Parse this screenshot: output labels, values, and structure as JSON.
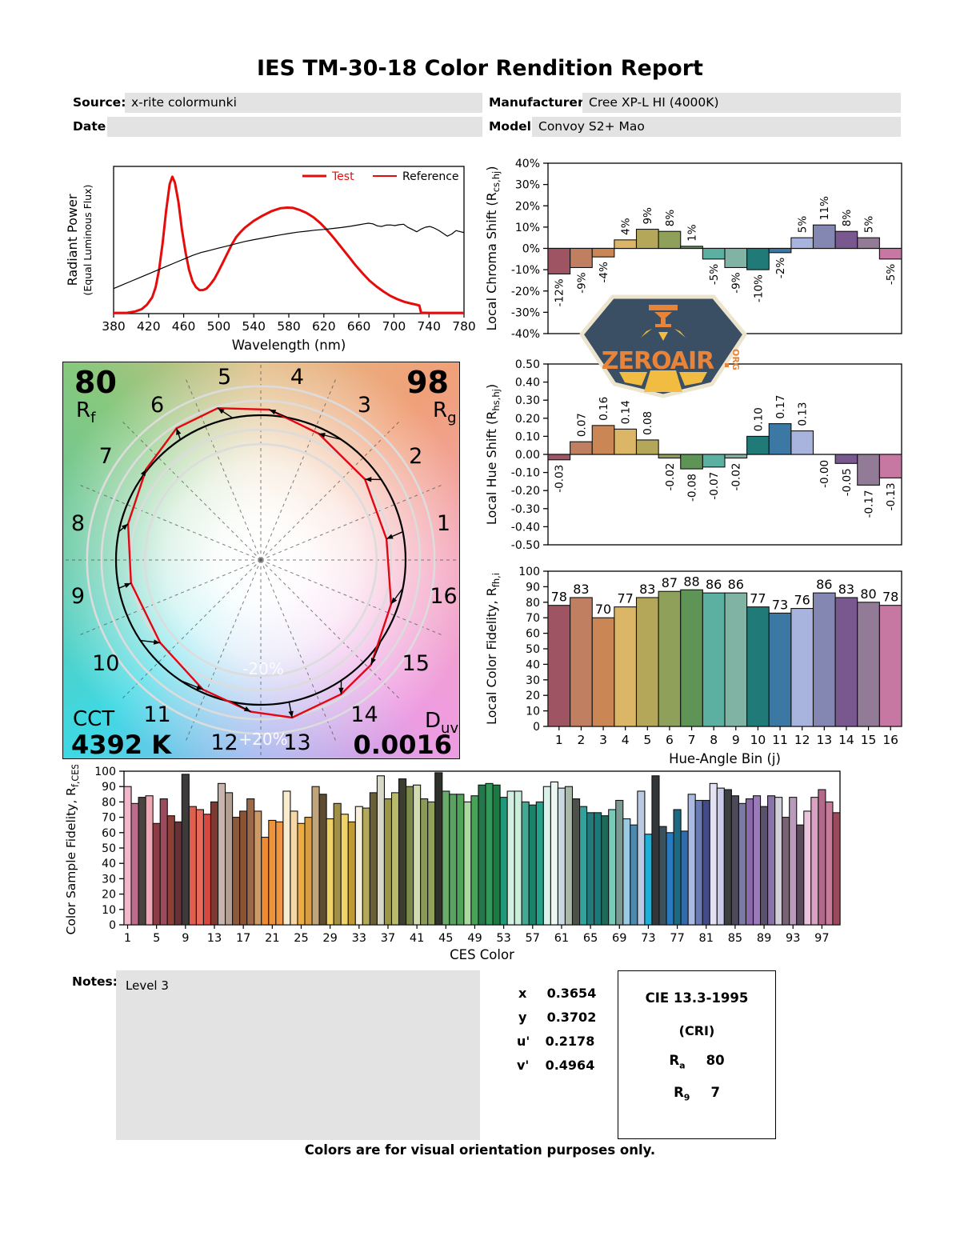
{
  "report": {
    "title": "IES TM-30-18 Color Rendition Report",
    "source_label": "Source:",
    "source_value": "x-rite colormunki",
    "manufacturer_label": "Manufacturer:",
    "manufacturer_value": "Cree XP-L HI (4000K)",
    "date_label": "Date:",
    "date_value": "",
    "model_label": "Model:",
    "model_value": "Convoy S2+ Mao"
  },
  "palette": {
    "hue_bins": [
      "#9e5462",
      "#c17f62",
      "#ca8654",
      "#dbb667",
      "#b5a75a",
      "#8fa05a",
      "#5f9457",
      "#5cb0a2",
      "#80b3a4",
      "#1f7a78",
      "#3b79a4",
      "#a9b4de",
      "#8387b1",
      "#78588f",
      "#917b97",
      "#c778a2"
    ],
    "test_red": "#e60c0c"
  },
  "chart_data": [
    {
      "id": "spd",
      "type": "line",
      "xlabel": "Wavelength (nm)",
      "ylabel": "Radiant Power",
      "ylabel2": "(Equal Luminous Flux)",
      "xlim": [
        380,
        780
      ],
      "ylim": [
        0,
        100
      ],
      "xticks": [
        380,
        420,
        460,
        500,
        540,
        580,
        620,
        660,
        700,
        740,
        780
      ],
      "legend": [
        {
          "name": "Test",
          "swatch_color": "#e60c0c",
          "text_color": "#e60c0c"
        },
        {
          "name": "Reference",
          "swatch_color": "#e60c0c",
          "text_color": "#000000"
        }
      ],
      "series": [
        {
          "name": "Test",
          "color": "#e60c0c",
          "width": 3,
          "points": [
            [
              380,
              0.5
            ],
            [
              395,
              0.5
            ],
            [
              405,
              1.5
            ],
            [
              412,
              3
            ],
            [
              418,
              6
            ],
            [
              424,
              11
            ],
            [
              428,
              18
            ],
            [
              432,
              30
            ],
            [
              436,
              48
            ],
            [
              440,
              70
            ],
            [
              444,
              88
            ],
            [
              447,
              93
            ],
            [
              450,
              89
            ],
            [
              454,
              76
            ],
            [
              458,
              57
            ],
            [
              462,
              42
            ],
            [
              466,
              30
            ],
            [
              470,
              22
            ],
            [
              474,
              18
            ],
            [
              478,
              16
            ],
            [
              482,
              16
            ],
            [
              486,
              17
            ],
            [
              490,
              19.5
            ],
            [
              495,
              23.5
            ],
            [
              500,
              29
            ],
            [
              505,
              35
            ],
            [
              510,
              41
            ],
            [
              515,
              47
            ],
            [
              520,
              52
            ],
            [
              525,
              55.5
            ],
            [
              530,
              58.5
            ],
            [
              540,
              63
            ],
            [
              550,
              66.5
            ],
            [
              560,
              69.5
            ],
            [
              570,
              71.5
            ],
            [
              578,
              72
            ],
            [
              585,
              71.8
            ],
            [
              592,
              70.5
            ],
            [
              600,
              68.5
            ],
            [
              608,
              65.5
            ],
            [
              616,
              61.5
            ],
            [
              624,
              56.5
            ],
            [
              632,
              51
            ],
            [
              640,
              45
            ],
            [
              648,
              39
            ],
            [
              656,
              33
            ],
            [
              664,
              27.5
            ],
            [
              672,
              22.5
            ],
            [
              680,
              18.5
            ],
            [
              688,
              15
            ],
            [
              696,
              12
            ],
            [
              704,
              9.8
            ],
            [
              712,
              8
            ],
            [
              720,
              6.8
            ],
            [
              726,
              6
            ],
            [
              729,
              5.5
            ],
            [
              731,
              0.6
            ],
            [
              740,
              0.5
            ],
            [
              780,
              0.5
            ]
          ]
        },
        {
          "name": "Reference",
          "color": "#000000",
          "width": 1.2,
          "points": [
            [
              380,
              17
            ],
            [
              390,
              19.5
            ],
            [
              400,
              22
            ],
            [
              410,
              24.5
            ],
            [
              420,
              27
            ],
            [
              430,
              29.5
            ],
            [
              440,
              32
            ],
            [
              450,
              34.5
            ],
            [
              460,
              37
            ],
            [
              470,
              39.5
            ],
            [
              480,
              41.5
            ],
            [
              490,
              43
            ],
            [
              500,
              44.5
            ],
            [
              510,
              46
            ],
            [
              520,
              47.5
            ],
            [
              530,
              49
            ],
            [
              540,
              50.2
            ],
            [
              550,
              51.3
            ],
            [
              560,
              52.4
            ],
            [
              570,
              53.4
            ],
            [
              580,
              54.4
            ],
            [
              590,
              55.3
            ],
            [
              600,
              56
            ],
            [
              610,
              56.7
            ],
            [
              620,
              57.2
            ],
            [
              630,
              57.8
            ],
            [
              640,
              58.5
            ],
            [
              650,
              59.3
            ],
            [
              660,
              60.3
            ],
            [
              666,
              61
            ],
            [
              671,
              61.4
            ],
            [
              676,
              61
            ],
            [
              681,
              59.6
            ],
            [
              686,
              59.2
            ],
            [
              691,
              60.1
            ],
            [
              696,
              60.2
            ],
            [
              701,
              59.8
            ],
            [
              706,
              60.4
            ],
            [
              711,
              60.7
            ],
            [
              716,
              58.6
            ],
            [
              721,
              57.2
            ],
            [
              726,
              55.6
            ],
            [
              731,
              57.4
            ],
            [
              736,
              58.7
            ],
            [
              741,
              59.2
            ],
            [
              746,
              58.1
            ],
            [
              751,
              56.6
            ],
            [
              756,
              54.6
            ],
            [
              761,
              52.6
            ],
            [
              766,
              54.1
            ],
            [
              771,
              56.4
            ],
            [
              776,
              55.6
            ],
            [
              780,
              55.1
            ]
          ]
        }
      ]
    },
    {
      "id": "chroma",
      "type": "bar",
      "ylabel": {
        "pre": "Local Chroma Shift (R",
        "sub": "cs,hj",
        "post": ")",
        "fs": 16
      },
      "ylim": [
        -40,
        40
      ],
      "yticks": [
        "40%",
        "30%",
        "20%",
        "10%",
        "0%",
        "-10%",
        "-20%",
        "-30%",
        "-40%"
      ],
      "categories": [
        1,
        2,
        3,
        4,
        5,
        6,
        7,
        8,
        9,
        10,
        11,
        12,
        13,
        14,
        15,
        16
      ],
      "values": [
        -12,
        -9,
        -4,
        4,
        9,
        8,
        1,
        -5,
        -9,
        -10,
        -2,
        5,
        11,
        8,
        5,
        -5
      ],
      "bar_labels": [
        "-12%",
        "-9%",
        "-4%",
        "4%",
        "9%",
        "8%",
        "1%",
        "-5%",
        "-9%",
        "-10%",
        "-2%",
        "5%",
        "11%",
        "8%",
        "5%",
        "-5%"
      ],
      "label_style": "rotated"
    },
    {
      "id": "hue",
      "type": "bar",
      "ylabel": {
        "pre": "Local Hue Shift (R",
        "sub": "hs,hj",
        "post": ")",
        "fs": 16
      },
      "ylim": [
        -0.5,
        0.5
      ],
      "yticks": [
        "0.50",
        "0.40",
        "0.30",
        "0.20",
        "0.10",
        "0.00",
        "-0.10",
        "-0.20",
        "-0.30",
        "-0.40",
        "-0.50"
      ],
      "categories": [
        1,
        2,
        3,
        4,
        5,
        6,
        7,
        8,
        9,
        10,
        11,
        12,
        13,
        14,
        15,
        16
      ],
      "values": [
        -0.03,
        0.07,
        0.16,
        0.14,
        0.08,
        -0.02,
        -0.08,
        -0.07,
        -0.02,
        0.1,
        0.17,
        0.13,
        -0.004,
        -0.05,
        -0.17,
        -0.13
      ],
      "bar_labels": [
        "-0.03",
        "0.07",
        "0.16",
        "0.14",
        "0.08",
        "-0.02",
        "-0.08",
        "-0.07",
        "-0.02",
        "0.10",
        "0.17",
        "0.13",
        "-0.00",
        "-0.05",
        "-0.17",
        "-0.13"
      ],
      "label_style": "rotated"
    },
    {
      "id": "fidelity",
      "type": "bar",
      "ylabel": {
        "pre": "Local Color Fidelity, R",
        "sub": "fh,i",
        "post": "",
        "fs": 16
      },
      "xlabel": "Hue-Angle Bin (j)",
      "ylim": [
        0,
        100
      ],
      "yticks": [
        "100",
        "90",
        "80",
        "70",
        "60",
        "50",
        "40",
        "30",
        "20",
        "10",
        "0"
      ],
      "categories": [
        1,
        2,
        3,
        4,
        5,
        6,
        7,
        8,
        9,
        10,
        11,
        12,
        13,
        14,
        15,
        16
      ],
      "xticks": [
        "1",
        "2",
        "3",
        "4",
        "5",
        "6",
        "7",
        "8",
        "9",
        "10",
        "11",
        "12",
        "13",
        "14",
        "15",
        "16"
      ],
      "values": [
        78,
        83,
        70,
        77,
        83,
        87,
        88,
        86,
        86,
        77,
        73,
        76,
        86,
        83,
        80,
        78
      ],
      "bar_labels": [
        "78",
        "83",
        "70",
        "77",
        "83",
        "87",
        "88",
        "86",
        "86",
        "77",
        "73",
        "76",
        "86",
        "83",
        "80",
        "78"
      ],
      "label_style": "top"
    },
    {
      "id": "ces",
      "type": "bar",
      "ylabel": {
        "pre": "Color Sample Fidelity, R",
        "sub": "f,CESi",
        "post": "",
        "fs": 15.5
      },
      "xlabel": "CES Color",
      "ylim": [
        0,
        100
      ],
      "yticks": [
        "100",
        "90",
        "80",
        "70",
        "60",
        "50",
        "40",
        "30",
        "20",
        "10",
        "0"
      ],
      "xticks": [
        "1",
        "5",
        "9",
        "13",
        "17",
        "21",
        "25",
        "29",
        "33",
        "37",
        "41",
        "45",
        "49",
        "53",
        "57",
        "61",
        "65",
        "69",
        "73",
        "77",
        "81",
        "85",
        "89",
        "93",
        "97"
      ],
      "xtick_every": 4,
      "values": [
        90,
        79,
        83,
        84,
        66,
        82,
        71,
        67,
        98,
        77,
        75,
        72,
        80,
        92,
        86,
        70,
        74,
        82,
        74,
        57,
        68,
        67,
        87,
        74,
        66,
        70,
        90,
        85,
        69,
        79,
        72,
        67,
        77,
        76,
        86,
        97,
        82,
        86,
        95,
        90,
        91,
        82,
        80,
        99,
        87,
        85,
        85,
        80,
        84,
        91,
        92,
        91,
        83,
        87,
        87,
        80,
        78,
        80,
        90,
        93,
        89,
        90,
        82,
        77,
        73,
        73,
        71,
        75,
        81,
        69,
        65,
        87,
        59,
        97,
        64,
        60,
        75,
        61,
        85,
        81,
        81,
        92,
        89,
        88,
        84,
        79,
        82,
        84,
        77,
        84,
        83,
        70,
        83,
        65,
        74,
        83,
        88,
        80,
        73
      ],
      "colors": [
        "#f2b8cc",
        "#c06a8c",
        "#4a443e",
        "#f0a8b4",
        "#8c3c44",
        "#9c4a5e",
        "#8c4036",
        "#663238",
        "#3c3a3a",
        "#e05e4e",
        "#e86a58",
        "#d84840",
        "#7c3a32",
        "#c6b6ae",
        "#b4a092",
        "#8c5a3a",
        "#8c5232",
        "#9c6a4a",
        "#cc9a66",
        "#ec8c34",
        "#f0923a",
        "#ee9644",
        "#f8eccc",
        "#f6d8a8",
        "#eeac40",
        "#d89c42",
        "#c2a47c",
        "#5c4c32",
        "#f0d262",
        "#a29049",
        "#f0d46a",
        "#c29a34",
        "#f8f0da",
        "#b2aa5a",
        "#6a6038",
        "#d8d8c8",
        "#9c9648",
        "#baba6c",
        "#3c3e32",
        "#7c8a4a",
        "#d2dab2",
        "#8c9a58",
        "#92a25a",
        "#2e302a",
        "#6aaa6a",
        "#5aa262",
        "#52a25a",
        "#aadaa2",
        "#4aa25a",
        "#22784a",
        "#32985a",
        "#1a7a42",
        "#22987a",
        "#d2f0e2",
        "#caeeda",
        "#42aa92",
        "#1a826a",
        "#22a28a",
        "#daf2ea",
        "#eef8f2",
        "#cad8e2",
        "#aab8aa",
        "#4c524a",
        "#32a29a",
        "#227a7a",
        "#1a7a7a",
        "#1c6a5a",
        "#7acaba",
        "#7c9a92",
        "#9acae2",
        "#4a8ab2",
        "#bacae2",
        "#1ab2da",
        "#323638",
        "#3a525e",
        "#2a7ac2",
        "#1c6a82",
        "#326aaa",
        "#aabae2",
        "#6a7ab2",
        "#424a8a",
        "#e2e2f2",
        "#cacaea",
        "#3c3e42",
        "#4c4a5a",
        "#7a7aa2",
        "#8a6aaa",
        "#9a7aba",
        "#5a526a",
        "#8a72aa",
        "#d2ceda",
        "#7a6272",
        "#ba9aba",
        "#5a4a5a",
        "#eac2da",
        "#daa2c2",
        "#b26a8a",
        "#ca7a9a",
        "#9a4a5a"
      ]
    },
    {
      "id": "cvg",
      "type": "polar_vector",
      "rf_value": "80",
      "rf_label": "R",
      "rf_sub": "f",
      "rg_value": "98",
      "rg_label": "R",
      "rg_sub": "g",
      "cct_label": "CCT",
      "cct_value": "4392 K",
      "duv_label": "D",
      "duv_sub": "uv",
      "duv_value": "0.0016",
      "bin_labels": [
        "1",
        "2",
        "3",
        "4",
        "5",
        "6",
        "7",
        "8",
        "9",
        "10",
        "11",
        "12",
        "13",
        "14",
        "15",
        "16"
      ],
      "ring_label_inner": "-20%",
      "ring_label_outer": "+20%",
      "rcs_pct": [
        -12,
        -9,
        -4,
        4,
        9,
        8,
        1,
        -5,
        -9,
        -10,
        -2,
        5,
        11,
        8,
        5,
        -5
      ],
      "rhs_rad": [
        -0.03,
        0.07,
        0.16,
        0.14,
        0.08,
        -0.02,
        -0.08,
        -0.07,
        -0.02,
        0.1,
        0.17,
        0.13,
        0.0,
        -0.05,
        -0.17,
        -0.13
      ]
    }
  ],
  "notes": {
    "label": "Notes:",
    "value": "Level 3"
  },
  "chromaticity": {
    "rows": [
      {
        "label": "x",
        "value": "0.3654"
      },
      {
        "label": "y",
        "value": "0.3702"
      },
      {
        "label": "u'",
        "value": "0.2178"
      },
      {
        "label": "v'",
        "value": "0.4964"
      }
    ]
  },
  "cie": {
    "title": "CIE 13.3-1995",
    "subtitle": "(CRI)",
    "ra_base": "R",
    "ra_sub": "a",
    "ra_value": "80",
    "r9_base": "R",
    "r9_sub": "9",
    "r9_value": "7"
  },
  "logo": {
    "main": "ZEROAIR",
    "suffix": "ORG"
  },
  "footer": "Colors are for visual orientation purposes only."
}
